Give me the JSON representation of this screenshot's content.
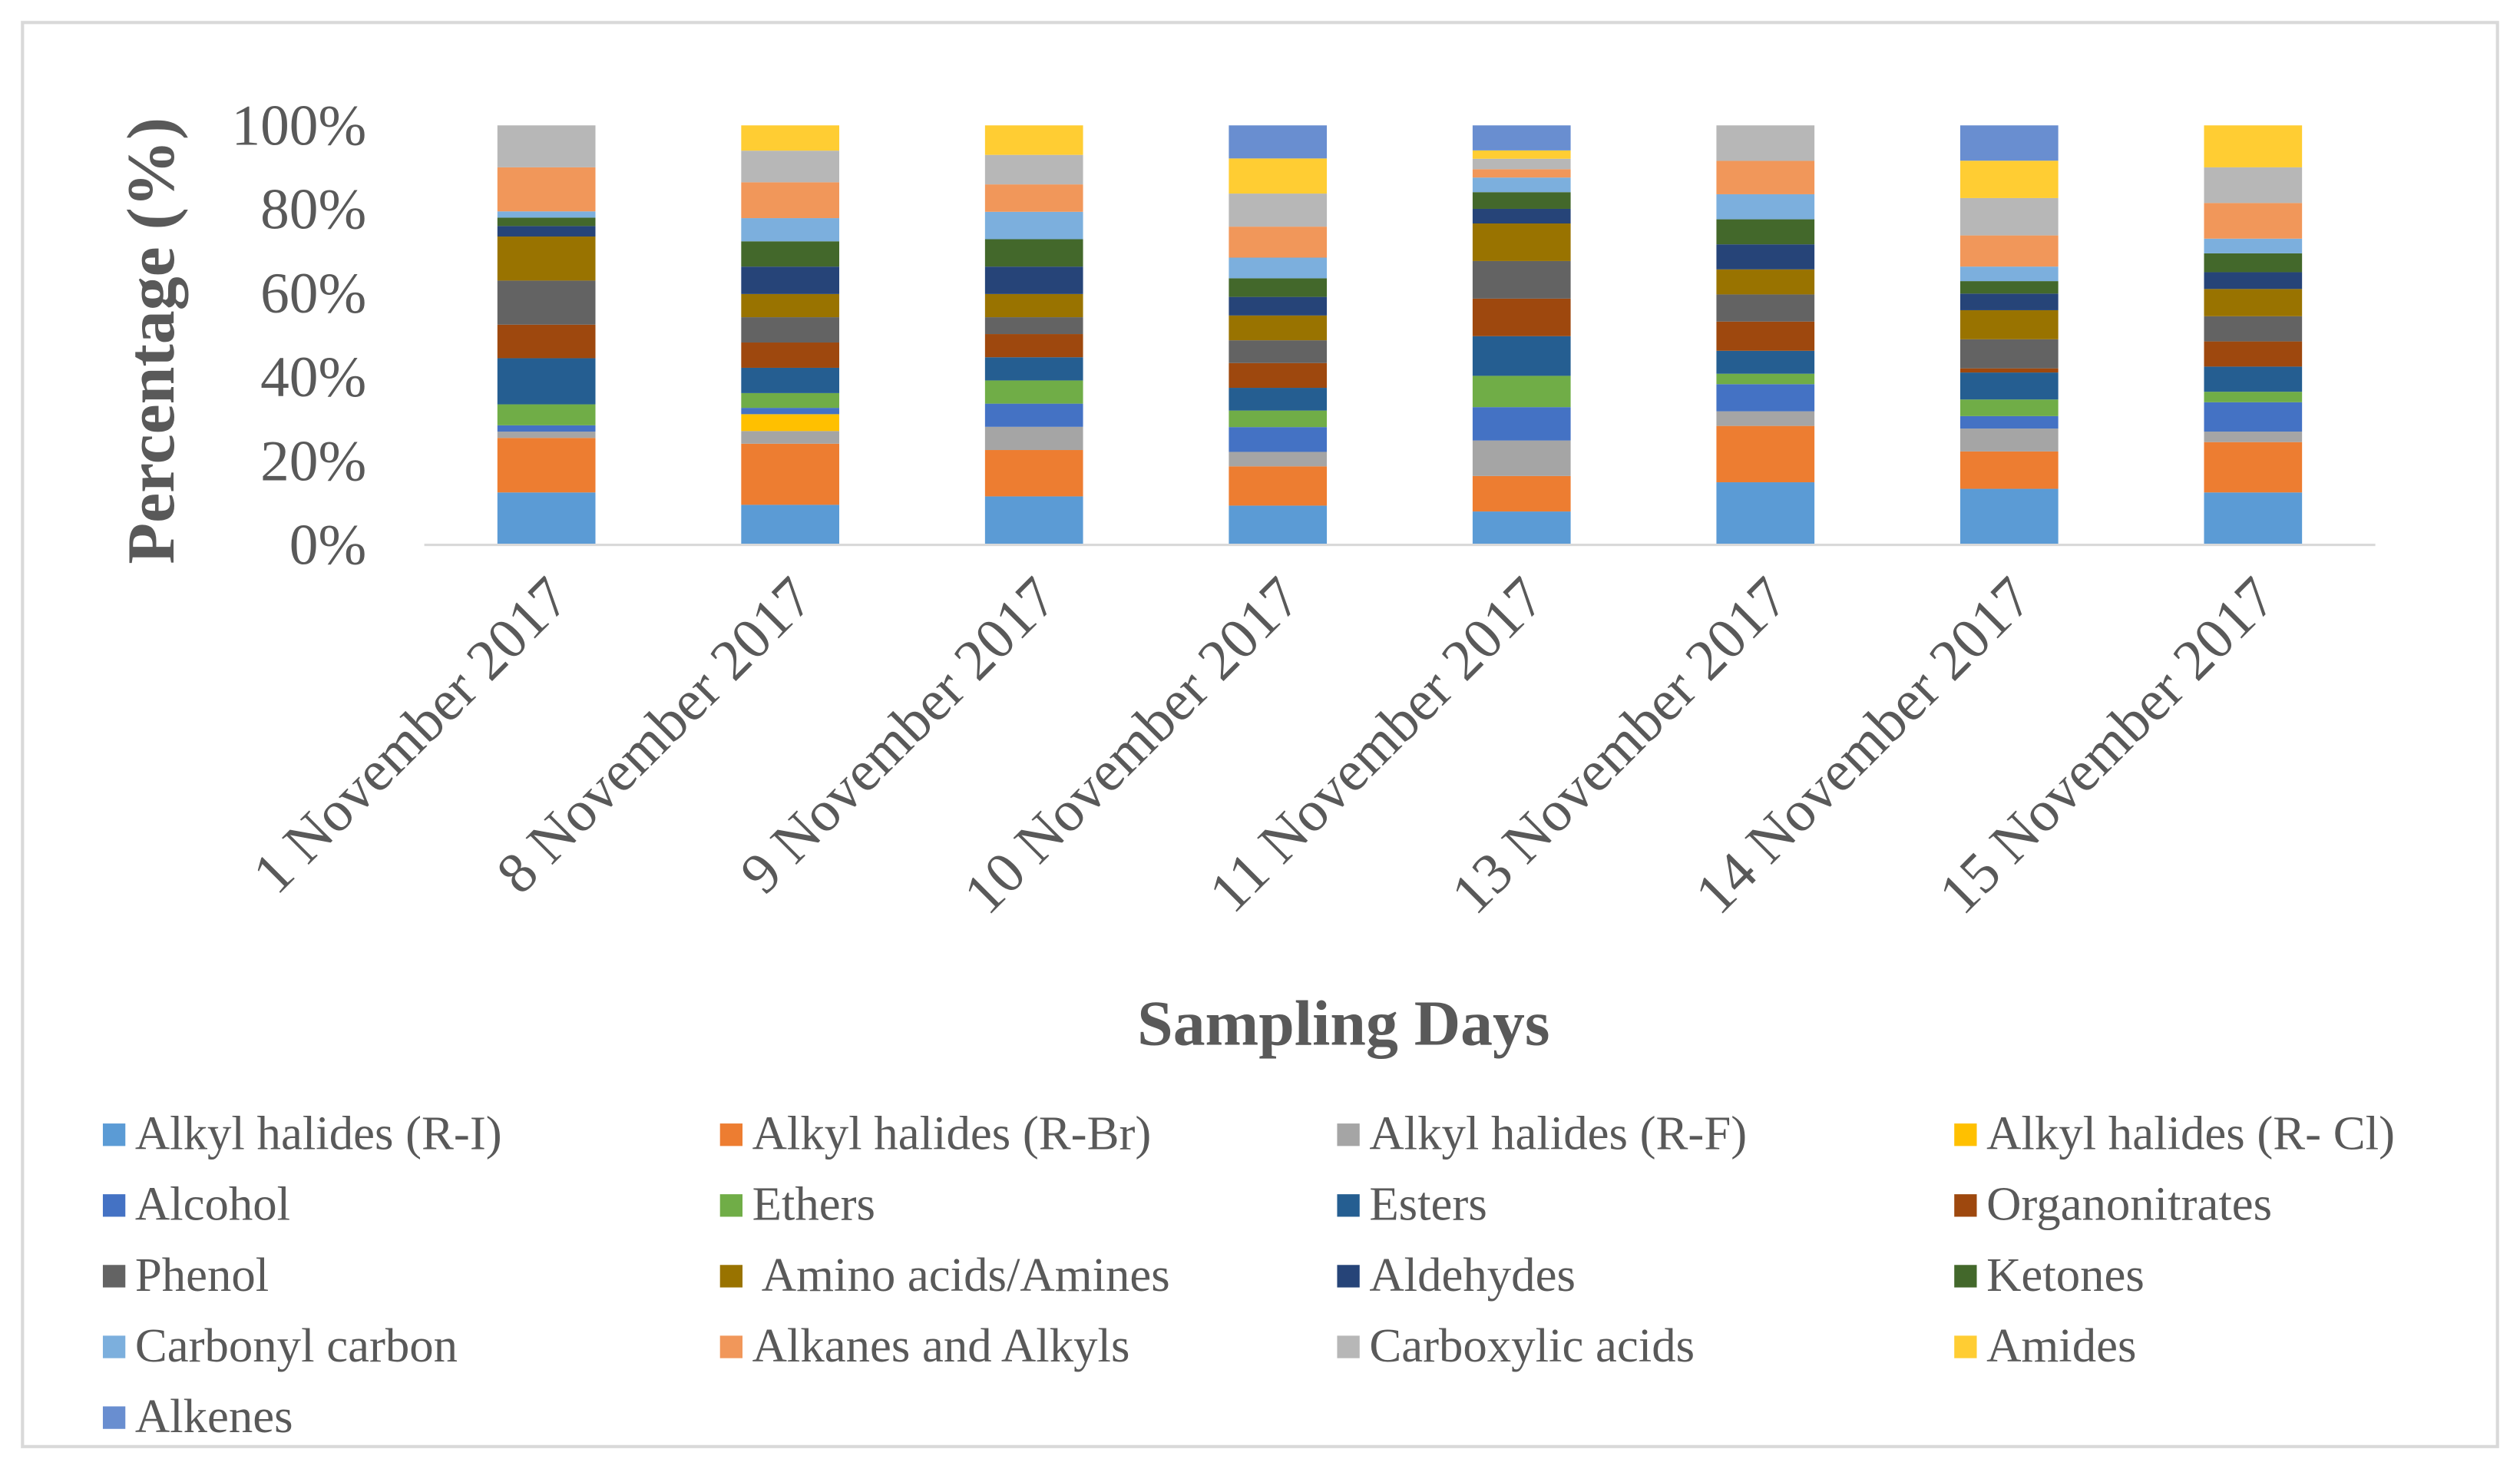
{
  "chart_data": {
    "type": "bar",
    "stacked": true,
    "percent_stacked": true,
    "title": "",
    "xlabel": "Sampling Days",
    "ylabel": "Percentage (%)",
    "ylim": [
      0,
      100
    ],
    "yticks": [
      "0%",
      "20%",
      "40%",
      "60%",
      "80%",
      "100%"
    ],
    "categories": [
      "1 November 2017",
      "8 November 2017",
      "9 November 2017",
      "10 November 2017",
      "11 November 2017",
      "13 November 2017",
      "14 November 2017",
      "15 November 2017"
    ],
    "legend_position": "bottom",
    "series": [
      {
        "name": "Alkyl halides (R-I)",
        "color": "#5B9BD5",
        "values": [
          12.5,
          9.5,
          11.5,
          9.5,
          8,
          15,
          13.5,
          12.5
        ]
      },
      {
        "name": "Alkyl halides (R-Br)",
        "color": "#ED7D31",
        "values": [
          13,
          14.5,
          11,
          9.5,
          8.5,
          13.5,
          9,
          12
        ]
      },
      {
        "name": "Alkyl halides (R-F)",
        "color": "#A5A5A5",
        "values": [
          1.5,
          3,
          5.5,
          3.5,
          8.5,
          3.5,
          5.5,
          2.5
        ]
      },
      {
        "name": "Alkyl halides (R- Cl)",
        "color": "#FFC000",
        "values": [
          0,
          4,
          0,
          0,
          0,
          0,
          0,
          0
        ]
      },
      {
        "name": "Alcohol",
        "color": "#4472C4",
        "values": [
          1.5,
          1.5,
          5.5,
          6,
          8,
          6.5,
          3,
          7
        ]
      },
      {
        "name": "Ethers",
        "color": "#70AD47",
        "values": [
          5,
          3.5,
          5.5,
          4,
          7.5,
          2.5,
          4,
          2.5
        ]
      },
      {
        "name": "Esters",
        "color": "#255E91",
        "values": [
          11,
          6,
          5.5,
          5.5,
          9.5,
          5.5,
          6.5,
          6
        ]
      },
      {
        "name": "Organonitrates",
        "color": "#9E480E",
        "values": [
          8,
          6,
          5.5,
          6,
          9,
          7,
          1,
          6
        ]
      },
      {
        "name": "Phenol",
        "color": "#636363",
        "values": [
          10.5,
          6,
          4,
          5.5,
          9,
          6.5,
          7,
          6
        ]
      },
      {
        "name": " Amino acids/Amines",
        "color": "#997300",
        "values": [
          10.5,
          5.5,
          5.5,
          6,
          9,
          6,
          7,
          6.5
        ]
      },
      {
        "name": "Aldehydes",
        "color": "#264478",
        "values": [
          2.5,
          6.5,
          6.5,
          4.5,
          3.5,
          6,
          4,
          4
        ]
      },
      {
        "name": "Ketones",
        "color": "#43682B",
        "values": [
          2,
          6,
          6.5,
          4.5,
          4,
          6,
          3,
          4.5
        ]
      },
      {
        "name": "Carbonyl carbon",
        "color": "#7CAFDD",
        "values": [
          1.5,
          5.5,
          6.5,
          5,
          3.5,
          6,
          3.5,
          3.5
        ]
      },
      {
        "name": "Alkanes and Alkyls",
        "color": "#F1975A",
        "values": [
          10.5,
          8.5,
          6.5,
          7.5,
          2,
          8,
          7.5,
          8.5
        ]
      },
      {
        "name": "Carboxylic acids",
        "color": "#B7B7B7",
        "values": [
          10,
          7.5,
          7,
          8,
          2.5,
          8.5,
          9,
          8.5
        ]
      },
      {
        "name": "Amides",
        "color": "#FFCD33",
        "values": [
          0,
          6,
          7,
          8.5,
          2,
          0,
          9,
          10
        ]
      },
      {
        "name": "Alkenes",
        "color": "#698ED0",
        "values": [
          0,
          0,
          0,
          8,
          6,
          0,
          8.5,
          0
        ]
      }
    ]
  }
}
